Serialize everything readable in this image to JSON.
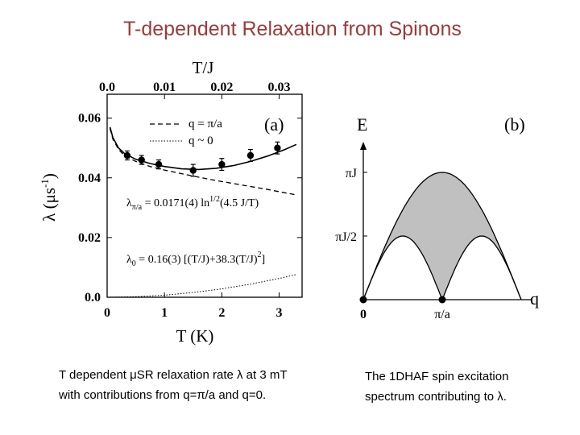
{
  "slide": {
    "title": "T-dependent Relaxation from Spinons",
    "caption_a_line1": "T dependent μSR relaxation rate λ at 3 mT",
    "caption_a_line2": "with contributions from q=π/a and q=0.",
    "caption_b_line1": "The 1DHAF spin excitation",
    "caption_b_line2": "spectrum contributing to λ."
  },
  "chart_data": [
    {
      "type": "scatter",
      "panel_label": "(a)",
      "xlabel": "T (K)",
      "x2label": "T/J",
      "ylabel": "λ (μs",
      "ylabel_sup": "-1",
      "ylabel_close": ")",
      "xlim": [
        0,
        3.4
      ],
      "ylim": [
        0,
        0.068
      ],
      "x_ticks": [
        "0",
        "1",
        "2",
        "3"
      ],
      "x_tick_values": [
        0,
        1,
        2,
        3
      ],
      "x2_ticks": [
        "0.0",
        "0.01",
        "0.02",
        "0.03"
      ],
      "x2_tick_values": [
        0,
        0.01,
        0.02,
        0.03
      ],
      "y_ticks": [
        "0.0",
        "0.02",
        "0.04",
        "0.06"
      ],
      "y_tick_values": [
        0,
        0.02,
        0.04,
        0.06
      ],
      "legend": [
        {
          "label": "q = π/a",
          "style": "dashed"
        },
        {
          "label": "q ~ 0",
          "style": "dotted"
        }
      ],
      "formula_1": "λ",
      "formula_1_sub": "π/a",
      "formula_1_rest": " = 0.0171(4) ln",
      "formula_1_sup": "1/2",
      "formula_1_tail": "(4.5 J/T)",
      "formula_2": "λ",
      "formula_2_sub": "0",
      "formula_2_rest": " = 0.16(3) [(T/J)+38.3(T/J)",
      "formula_2_sup": "2",
      "formula_2_tail": "]",
      "points": [
        {
          "x": 0.35,
          "y": 0.0475,
          "err": 0.0015
        },
        {
          "x": 0.6,
          "y": 0.046,
          "err": 0.0015
        },
        {
          "x": 0.9,
          "y": 0.0445,
          "err": 0.0015
        },
        {
          "x": 1.5,
          "y": 0.0425,
          "err": 0.002
        },
        {
          "x": 2.0,
          "y": 0.0445,
          "err": 0.002
        },
        {
          "x": 2.5,
          "y": 0.0475,
          "err": 0.002
        },
        {
          "x": 2.97,
          "y": 0.05,
          "err": 0.002
        }
      ],
      "series": [
        {
          "style": "solid",
          "x": [
            0.05,
            0.1,
            0.2,
            0.3,
            0.5,
            0.75,
            1.0,
            1.3,
            1.6,
            1.9,
            2.2,
            2.5,
            2.8,
            3.1,
            3.3
          ],
          "y": [
            0.057,
            0.0535,
            0.05,
            0.0482,
            0.0462,
            0.0448,
            0.0438,
            0.043,
            0.0428,
            0.0432,
            0.0441,
            0.0455,
            0.0473,
            0.0495,
            0.0512
          ]
        },
        {
          "style": "dashed",
          "x": [
            0.05,
            0.1,
            0.2,
            0.3,
            0.5,
            0.75,
            1.0,
            1.3,
            1.6,
            1.9,
            2.2,
            2.5,
            2.8,
            3.1,
            3.3
          ],
          "y": [
            0.0565,
            0.053,
            0.0495,
            0.0475,
            0.0455,
            0.0438,
            0.0426,
            0.0414,
            0.0402,
            0.0391,
            0.0381,
            0.0371,
            0.0361,
            0.035,
            0.0343
          ]
        },
        {
          "style": "dotted",
          "x": [
            0,
            0.5,
            1.0,
            1.5,
            2.0,
            2.5,
            3.0,
            3.3
          ],
          "y": [
            0,
            0.0002,
            0.0007,
            0.0016,
            0.0028,
            0.0044,
            0.0063,
            0.0076
          ]
        }
      ]
    },
    {
      "type": "area",
      "panel_label": "(b)",
      "ylabel": "E",
      "xlabel": "q",
      "x_ticks": [
        "0",
        "π/a"
      ],
      "x_tick_values": [
        0,
        1
      ],
      "xlim": [
        0,
        2
      ],
      "y_ticks": [
        "πJ",
        "πJ/2"
      ],
      "y_tick_values": [
        3.1416,
        1.5708
      ],
      "lower_boundary": "(πJ/2)|sin(qa)|",
      "upper_boundary": "πJ|sin(qa/2)|",
      "points": [
        {
          "x": 0,
          "y": 0
        },
        {
          "x": 1,
          "y": 0
        }
      ]
    }
  ]
}
